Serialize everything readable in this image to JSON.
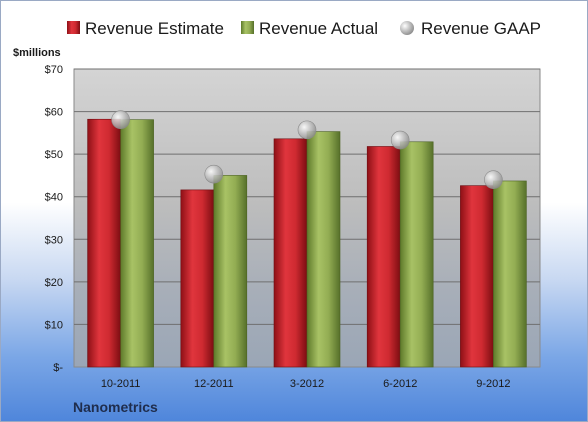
{
  "chart_data": {
    "type": "bar",
    "company": "Nanometrics",
    "unit_label": "$millions",
    "categories": [
      "10-2011",
      "12-2011",
      "3-2012",
      "6-2012",
      "9-2012"
    ],
    "series": [
      {
        "name": "Revenue Estimate",
        "type": "bar",
        "color": "#c8222a",
        "values": [
          58.2,
          41.6,
          53.6,
          51.8,
          42.6
        ]
      },
      {
        "name": "Revenue Actual",
        "type": "bar",
        "color": "#8aa54a",
        "values": [
          58.1,
          45.0,
          55.3,
          52.9,
          43.7
        ]
      },
      {
        "name": "Revenue GAAP",
        "type": "scatter",
        "color": "#b9b9b9",
        "values": [
          58.1,
          45.3,
          55.7,
          53.3,
          44.0
        ]
      }
    ],
    "ylim": [
      0,
      70
    ],
    "yticks": [
      0,
      10,
      20,
      30,
      40,
      50,
      60,
      70
    ],
    "ytick_labels": [
      "$-",
      "$10",
      "$20",
      "$30",
      "$40",
      "$50",
      "$60",
      "$70"
    ],
    "grid": true,
    "legend_position": "top"
  }
}
